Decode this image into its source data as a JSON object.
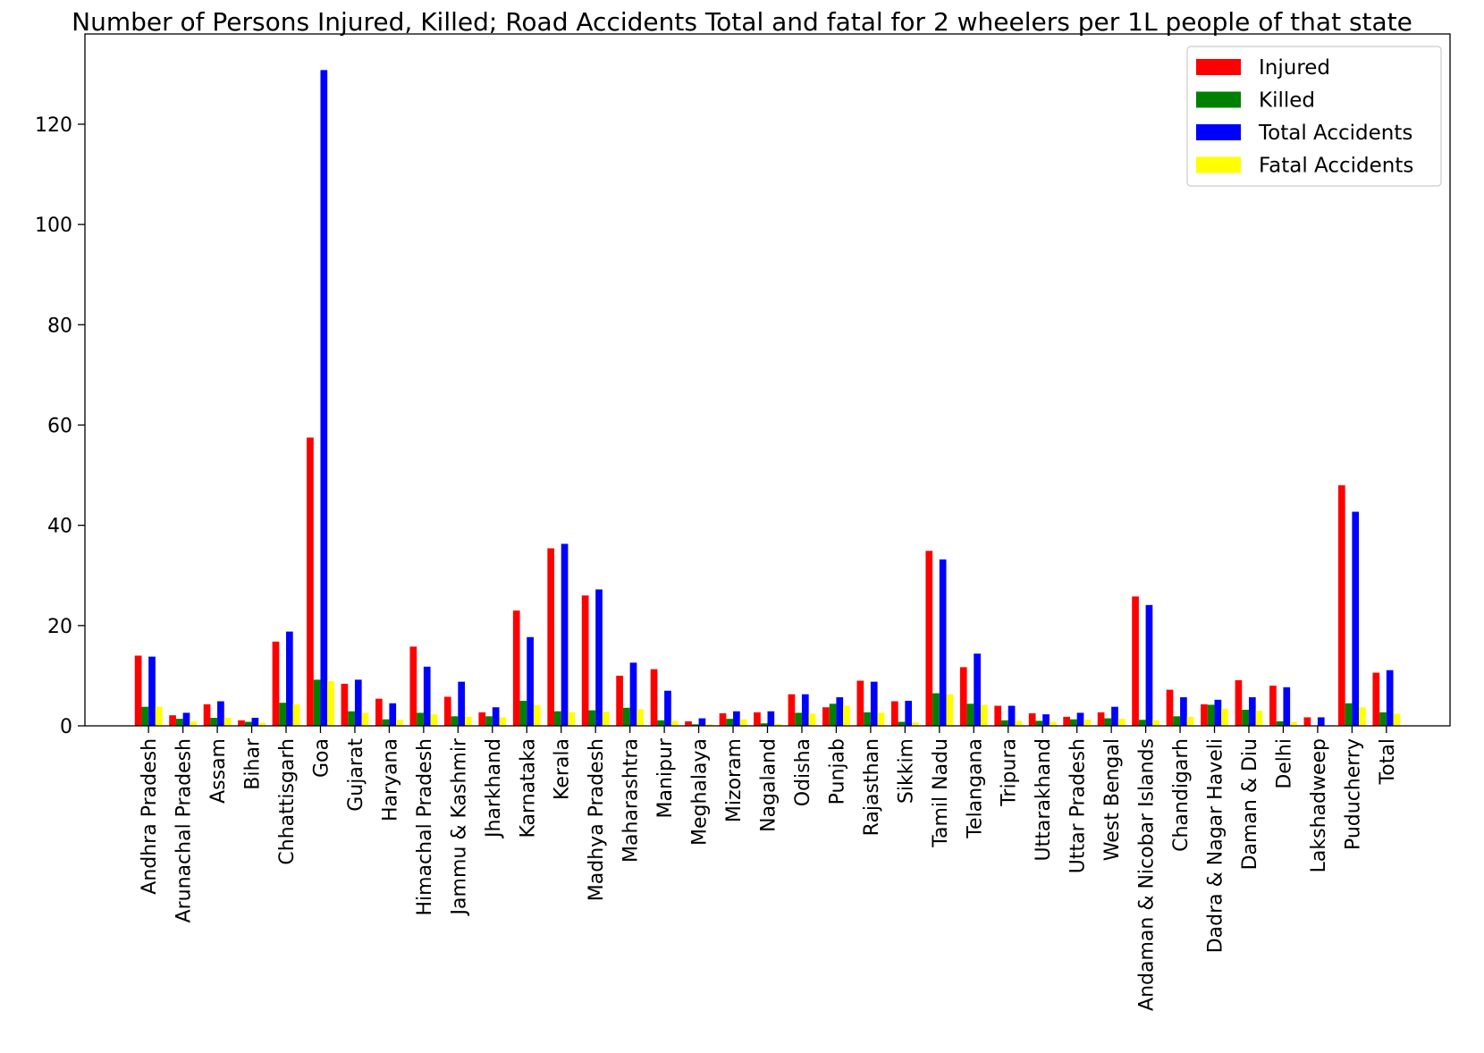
{
  "chart_data": {
    "type": "bar",
    "title": "Number of Persons Injured, Killed; Road Accidents Total and fatal for 2 wheelers per 1L people of that state",
    "xlabel": "",
    "ylabel": "",
    "ylim": [
      0,
      138
    ],
    "yticks": [
      0,
      20,
      40,
      60,
      80,
      100,
      120
    ],
    "grid": false,
    "legend_position": "top-right",
    "categories": [
      "Andhra Pradesh",
      "Arunachal Pradesh",
      "Assam",
      "Bihar",
      "Chhattisgarh",
      "Goa",
      "Gujarat",
      "Haryana",
      "Himachal Pradesh",
      "Jammu & Kashmir",
      "Jharkhand",
      "Karnataka",
      "Kerala",
      "Madhya Pradesh",
      "Maharashtra",
      "Manipur",
      "Meghalaya",
      "Mizoram",
      "Nagaland",
      "Odisha",
      "Punjab",
      "Rajasthan",
      "Sikkim",
      "Tamil Nadu",
      "Telangana",
      "Tripura",
      "Uttarakhand",
      "Uttar Pradesh",
      "West Bengal",
      "Andaman & Nicobar Islands",
      "Chandigarh",
      "Dadra & Nagar Haveli",
      "Daman & Diu",
      "Delhi",
      "Lakshadweep",
      "Puducherry",
      "Total"
    ],
    "series": [
      {
        "name": "Injured",
        "color": "#ff0000",
        "values": [
          14.0,
          2.1,
          4.3,
          1.1,
          16.8,
          57.5,
          8.4,
          5.4,
          15.8,
          5.8,
          2.7,
          23.0,
          35.4,
          26.0,
          10.0,
          11.3,
          0.9,
          2.5,
          2.7,
          6.3,
          3.7,
          9.0,
          4.9,
          34.9,
          11.7,
          4.0,
          2.5,
          1.8,
          2.7,
          25.8,
          7.2,
          4.3,
          9.1,
          8.0,
          1.7,
          48.0,
          10.6
        ]
      },
      {
        "name": "Killed",
        "color": "#008000",
        "values": [
          3.8,
          1.4,
          1.6,
          0.8,
          4.6,
          9.2,
          2.9,
          1.3,
          2.6,
          1.9,
          1.9,
          5.0,
          2.9,
          3.1,
          3.6,
          1.1,
          0.3,
          1.4,
          0.5,
          2.6,
          4.4,
          2.7,
          0.8,
          6.5,
          4.4,
          1.1,
          1.0,
          1.3,
          1.5,
          1.2,
          1.9,
          4.2,
          3.2,
          0.9,
          0.0,
          4.5,
          2.7
        ]
      },
      {
        "name": "Total Accidents",
        "color": "#0000ff",
        "values": [
          13.8,
          2.6,
          4.9,
          1.6,
          18.8,
          130.8,
          9.2,
          4.5,
          11.8,
          8.8,
          3.7,
          17.7,
          36.3,
          27.2,
          12.6,
          7.0,
          1.5,
          2.9,
          2.9,
          6.3,
          5.7,
          8.8,
          5.0,
          33.2,
          14.4,
          4.0,
          2.3,
          2.6,
          3.8,
          24.1,
          5.7,
          5.2,
          5.7,
          7.7,
          1.7,
          42.7,
          11.1
        ]
      },
      {
        "name": "Fatal Accidents",
        "color": "#ffff00",
        "values": [
          3.8,
          0.9,
          1.6,
          0.6,
          4.3,
          8.9,
          2.6,
          1.2,
          2.3,
          1.8,
          1.7,
          4.1,
          2.7,
          2.8,
          3.3,
          1.0,
          0.3,
          1.3,
          0.4,
          2.4,
          4.0,
          2.6,
          0.7,
          6.3,
          4.2,
          1.0,
          0.8,
          1.2,
          1.4,
          1.1,
          1.8,
          3.4,
          3.0,
          0.8,
          0.0,
          3.7,
          2.4
        ]
      }
    ]
  }
}
